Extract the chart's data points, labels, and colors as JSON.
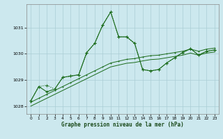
{
  "xlabel": "Graphe pression niveau de la mer (hPa)",
  "background_color": "#cce8ee",
  "grid_color": "#aacdd5",
  "line_color": "#1a6b1a",
  "ylim": [
    1027.7,
    1031.9
  ],
  "xlim": [
    -0.5,
    23.5
  ],
  "yticks": [
    1028,
    1029,
    1030,
    1031
  ],
  "xticks": [
    0,
    1,
    2,
    3,
    4,
    5,
    6,
    7,
    8,
    9,
    10,
    11,
    12,
    13,
    14,
    15,
    16,
    17,
    18,
    19,
    20,
    21,
    22,
    23
  ],
  "line1_x": [
    0,
    1,
    2,
    3,
    4,
    5,
    6,
    7,
    8,
    9,
    10,
    11,
    12,
    13,
    14,
    15,
    16,
    17,
    18,
    19,
    20,
    21,
    22,
    23
  ],
  "line1_y": [
    1028.2,
    1028.75,
    1028.8,
    1028.65,
    1029.1,
    1029.15,
    1029.2,
    1030.05,
    1030.4,
    1031.1,
    1031.6,
    1030.65,
    1030.65,
    1030.4,
    1029.4,
    1029.35,
    1029.4,
    1029.65,
    1029.85,
    1030.05,
    1030.2,
    1029.95,
    1030.1,
    1030.15
  ],
  "line2_x": [
    0,
    1,
    2,
    3,
    4,
    5,
    6,
    7,
    8,
    9,
    10,
    11,
    12,
    13,
    14,
    15,
    16,
    17,
    18,
    19,
    20,
    21,
    22,
    23
  ],
  "line2_y": [
    1028.15,
    1028.3,
    1028.45,
    1028.6,
    1028.75,
    1028.9,
    1029.05,
    1029.2,
    1029.35,
    1029.5,
    1029.65,
    1029.72,
    1029.79,
    1029.82,
    1029.88,
    1029.93,
    1029.95,
    1030.0,
    1030.05,
    1030.1,
    1030.18,
    1030.1,
    1030.18,
    1030.22
  ],
  "line3_x": [
    0,
    1,
    2,
    3,
    4,
    5,
    6,
    7,
    8,
    9,
    10,
    11,
    12,
    13,
    14,
    15,
    16,
    17,
    18,
    19,
    20,
    21,
    22,
    23
  ],
  "line3_y": [
    1028.0,
    1028.15,
    1028.3,
    1028.45,
    1028.6,
    1028.75,
    1028.9,
    1029.05,
    1029.2,
    1029.35,
    1029.5,
    1029.57,
    1029.64,
    1029.67,
    1029.73,
    1029.78,
    1029.8,
    1029.85,
    1029.9,
    1029.95,
    1030.03,
    1029.95,
    1030.03,
    1030.07
  ],
  "line4_x": [
    0,
    1,
    2,
    3,
    4,
    5,
    6,
    7,
    8,
    9,
    10,
    11,
    12,
    13,
    14,
    15,
    16,
    17,
    18,
    19,
    20,
    21,
    22,
    23
  ],
  "line4_y": [
    1028.2,
    1028.75,
    1028.55,
    1028.65,
    1029.1,
    1029.15,
    1029.2,
    1030.05,
    1030.4,
    1031.1,
    1031.6,
    1030.65,
    1030.65,
    1030.4,
    1029.4,
    1029.35,
    1029.4,
    1029.65,
    1029.85,
    1030.05,
    1030.2,
    1029.95,
    1030.1,
    1030.15
  ]
}
